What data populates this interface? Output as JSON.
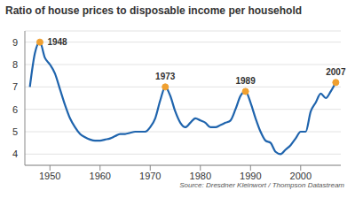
{
  "chart_data": {
    "type": "line",
    "title": "Ratio of house prices to disposable income per household",
    "source": "Source: Dresdner Kleinwort / Thompson Datastream",
    "x": [
      1946,
      1947,
      1948,
      1949,
      1950,
      1951,
      1952,
      1953,
      1954,
      1955,
      1956,
      1957,
      1958,
      1959,
      1960,
      1961,
      1962,
      1963,
      1964,
      1965,
      1966,
      1967,
      1968,
      1969,
      1970,
      1971,
      1972,
      1973,
      1974,
      1975,
      1976,
      1977,
      1978,
      1979,
      1980,
      1981,
      1982,
      1983,
      1984,
      1985,
      1986,
      1987,
      1988,
      1989,
      1990,
      1991,
      1992,
      1993,
      1994,
      1995,
      1996,
      1997,
      1998,
      1999,
      2000,
      2001,
      2002,
      2003,
      2004,
      2005,
      2006,
      2007
    ],
    "values": [
      7.0,
      8.5,
      9.0,
      8.3,
      8.0,
      7.6,
      6.9,
      6.2,
      5.6,
      5.2,
      4.9,
      4.75,
      4.65,
      4.6,
      4.6,
      4.65,
      4.7,
      4.8,
      4.9,
      4.9,
      4.95,
      5.0,
      5.0,
      5.0,
      5.2,
      5.6,
      6.4,
      7.0,
      6.6,
      5.9,
      5.4,
      5.2,
      5.4,
      5.6,
      5.5,
      5.4,
      5.2,
      5.2,
      5.3,
      5.4,
      5.5,
      6.0,
      6.6,
      6.8,
      6.3,
      5.6,
      5.0,
      4.6,
      4.5,
      4.1,
      4.0,
      4.2,
      4.4,
      4.7,
      5.0,
      5.0,
      5.9,
      6.3,
      6.7,
      6.5,
      6.8,
      7.2
    ],
    "color": "#1f64ad",
    "xlim": [
      1945,
      2008
    ],
    "xticks": [
      1950,
      1960,
      1970,
      1980,
      1990,
      2000
    ],
    "ylim": [
      3.5,
      9.5
    ],
    "yticks": [
      4,
      5,
      6,
      7,
      8,
      9
    ],
    "grid": true,
    "annotations": [
      {
        "x": 1948,
        "y": 9.0,
        "label": "1948"
      },
      {
        "x": 1973,
        "y": 7.0,
        "label": "1973"
      },
      {
        "x": 1989,
        "y": 6.8,
        "label": "1989"
      },
      {
        "x": 2007,
        "y": 7.2,
        "label": "2007"
      }
    ]
  }
}
